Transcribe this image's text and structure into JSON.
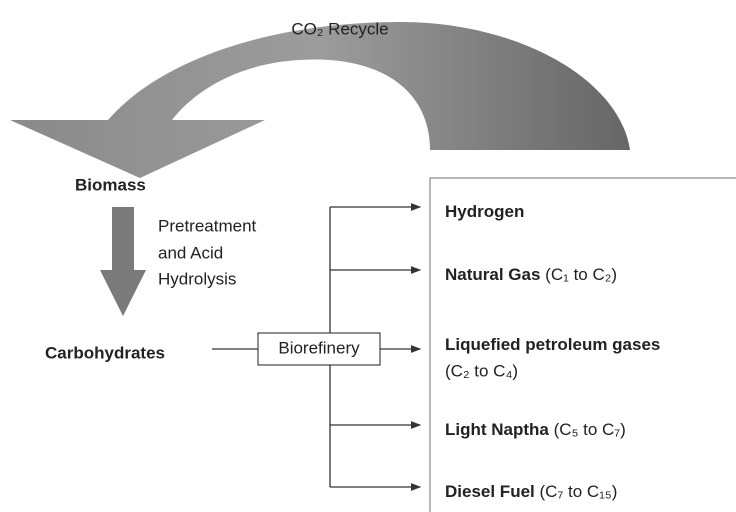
{
  "cycle": {
    "label": "CO₂ Recycle"
  },
  "feedstock": {
    "label": "Biomass"
  },
  "process": {
    "lines": [
      "Pretreatment",
      "and Acid",
      "Hydrolysis"
    ]
  },
  "intermediate": {
    "label": "Carbohydrates"
  },
  "refinery": {
    "label": "Biorefinery"
  },
  "products": [
    {
      "name": "Hydrogen"
    },
    {
      "name": "Natural Gas",
      "detail": "(C₁ to C₂)"
    },
    {
      "name": "Liquefied petroleum gases",
      "detail": "(C₂ to C₄)"
    },
    {
      "name": "Light Naptha",
      "detail": "(C₅ to C₇)"
    },
    {
      "name": "Diesel Fuel",
      "detail": "(C₇ to C₁₅)"
    }
  ]
}
